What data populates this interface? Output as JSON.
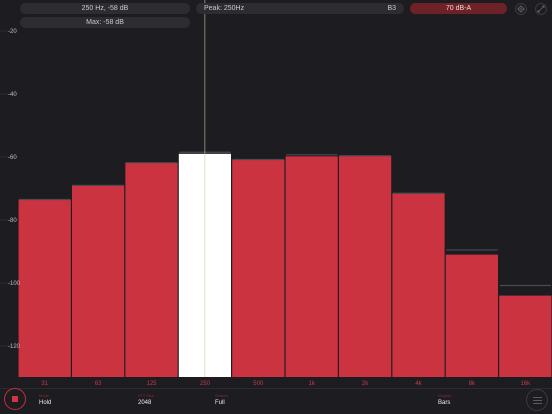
{
  "header": {
    "hover_readout": "250 Hz, -58 dB",
    "max_readout": "Max: -58 dB",
    "peak_readout": "Peak: 250Hz",
    "note": "B3",
    "level": "70 dB-A"
  },
  "icons": {
    "target": "crosshair-icon",
    "expand": "expand-icon",
    "stop": "stop-icon",
    "menu": "hamburger-menu-icon"
  },
  "colors": {
    "background": "#1d1d21",
    "bar": "#cc3340",
    "selected_bar": "#ffffff",
    "peak_hold": "#4a4a50",
    "accent": "#c0303a"
  },
  "chart_data": {
    "type": "bar",
    "categories": [
      "31",
      "63",
      "125",
      "250",
      "500",
      "1k",
      "2k",
      "4k",
      "8k",
      "16k"
    ],
    "values": [
      -73.5,
      -69,
      -61.8,
      -59,
      -60.8,
      -59.8,
      -59.6,
      -71.5,
      -91,
      -104
    ],
    "peak_hold": [
      -73.5,
      -69,
      -61.8,
      -58.5,
      -60.8,
      -59.3,
      -59.6,
      -71.5,
      -89.5,
      -100.8
    ],
    "selected_index": 3,
    "y_ticks": [
      "-20",
      "-40",
      "-60",
      "-80",
      "-100",
      "-120"
    ],
    "y_tick_values": [
      -20,
      -40,
      -60,
      -80,
      -100,
      -120
    ],
    "ylim": [
      -130,
      -20
    ],
    "title": "",
    "xlabel": "",
    "ylabel": ""
  },
  "bottom_bar": {
    "mode": {
      "caption": "Mode",
      "value": "Hold"
    },
    "fft": {
      "caption": "FFT Size",
      "value": "2048"
    },
    "screen": {
      "caption": "Screen",
      "value": "Full"
    },
    "display": {
      "caption": "Display",
      "value": "Bars"
    }
  }
}
